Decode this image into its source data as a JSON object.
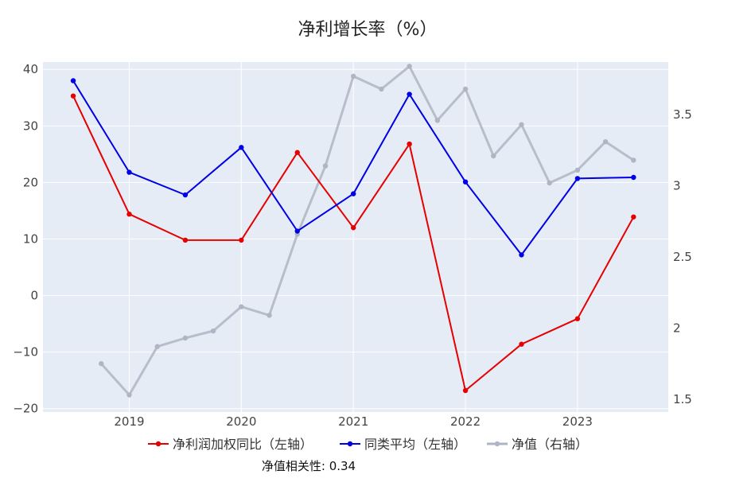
{
  "chart_data": {
    "type": "line",
    "title": "净利增长率（%）",
    "x_axis": {
      "ticks": [
        "2019",
        "2020",
        "2021",
        "2022",
        "2023"
      ],
      "range": [
        2018.23,
        2023.81
      ]
    },
    "y_left": {
      "ticks": [
        "40",
        "30",
        "20",
        "10",
        "0",
        "−10",
        "−20"
      ],
      "range": [
        -20.6,
        41.3
      ]
    },
    "y_right": {
      "ticks": [
        "3.5",
        "3",
        "2.5",
        "2",
        "1.5"
      ],
      "range": [
        1.41,
        3.87
      ]
    },
    "grid": true,
    "legend": {
      "position": "bottom"
    },
    "series": [
      {
        "name": "净利润加权同比（左轴）",
        "axis": "left",
        "color": "#e60000",
        "x": [
          2018.5,
          2019.0,
          2019.5,
          2020.0,
          2020.5,
          2021.0,
          2021.5,
          2022.0,
          2022.5,
          2023.0,
          2023.5
        ],
        "y": [
          35.3,
          14.4,
          9.8,
          9.8,
          25.3,
          12.0,
          26.8,
          -16.8,
          -8.6,
          -4.1,
          13.9
        ]
      },
      {
        "name": "同类平均（左轴）",
        "axis": "left",
        "color": "#0000e6",
        "x": [
          2018.5,
          2019.0,
          2019.5,
          2020.0,
          2020.5,
          2021.0,
          2021.5,
          2022.0,
          2022.5,
          2023.0,
          2023.5
        ],
        "y": [
          38.0,
          21.8,
          17.8,
          26.2,
          11.4,
          18.0,
          35.6,
          20.1,
          7.2,
          20.7,
          20.9
        ]
      },
      {
        "name": "净值（右轴）",
        "axis": "right",
        "color": "#b0b5c4",
        "x": [
          2018.75,
          2019.0,
          2019.25,
          2019.5,
          2019.75,
          2020.0,
          2020.25,
          2020.5,
          2020.75,
          2021.0,
          2021.25,
          2021.5,
          2021.75,
          2022.0,
          2022.25,
          2022.5,
          2022.75,
          2023.0,
          2023.25,
          2023.5
        ],
        "y": [
          1.75,
          1.53,
          1.87,
          1.93,
          1.98,
          2.15,
          2.09,
          2.66,
          3.14,
          3.77,
          3.68,
          3.84,
          3.46,
          3.68,
          3.21,
          3.43,
          3.02,
          3.11,
          3.31,
          3.18
        ]
      }
    ],
    "annotation": "净值相关性: 0.34"
  }
}
